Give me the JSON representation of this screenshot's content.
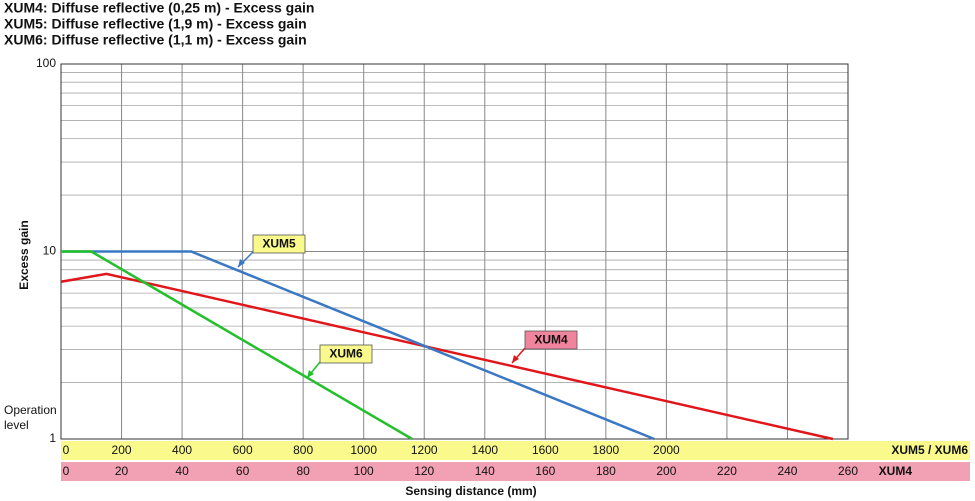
{
  "chart_data": {
    "type": "line",
    "title": [
      "XUM4: Diffuse reflective (0,25 m) - Excess gain",
      "XUM5: Diffuse reflective (1,9 m) - Excess gain",
      "XUM6: Diffuse reflective (1,1 m) - Excess gain"
    ],
    "y_label": "Excess gain",
    "x_label": "Sensing distance (mm)",
    "annotation": "Operation level",
    "log_y": true,
    "grid": true,
    "ylim": [
      1,
      100
    ],
    "yticks": [
      1,
      10,
      100
    ],
    "xlim": [
      0,
      2600
    ],
    "xticks": [
      0,
      200,
      400,
      600,
      800,
      1000,
      1200,
      1400,
      1600,
      1800,
      2000
    ],
    "x_axis_label": "XUM5 / XUM6",
    "x_axis_color": "#fafa8c",
    "x2lim": [
      0,
      260
    ],
    "x2ticks": [
      0,
      20,
      40,
      60,
      80,
      100,
      120,
      140,
      160,
      180,
      200,
      220,
      240,
      260
    ],
    "x2_axis_label": "XUM4",
    "x2_axis_color": "#f2a0b4",
    "series": [
      {
        "name": "XUM4",
        "color": "#e0161b",
        "label_color": "#f0849c",
        "axis": "x2",
        "x": [
          0,
          15,
          255
        ],
        "values": [
          6.9,
          7.6,
          1
        ]
      },
      {
        "name": "XUM5",
        "color": "#3a78c4",
        "label_color": "#fafa8c",
        "x": [
          0,
          430,
          1960
        ],
        "values": [
          10,
          10,
          1
        ]
      },
      {
        "name": "XUM6",
        "color": "#22c02a",
        "label_color": "#fafa8c",
        "x": [
          0,
          100,
          1160
        ],
        "values": [
          10,
          10,
          1
        ]
      }
    ]
  }
}
